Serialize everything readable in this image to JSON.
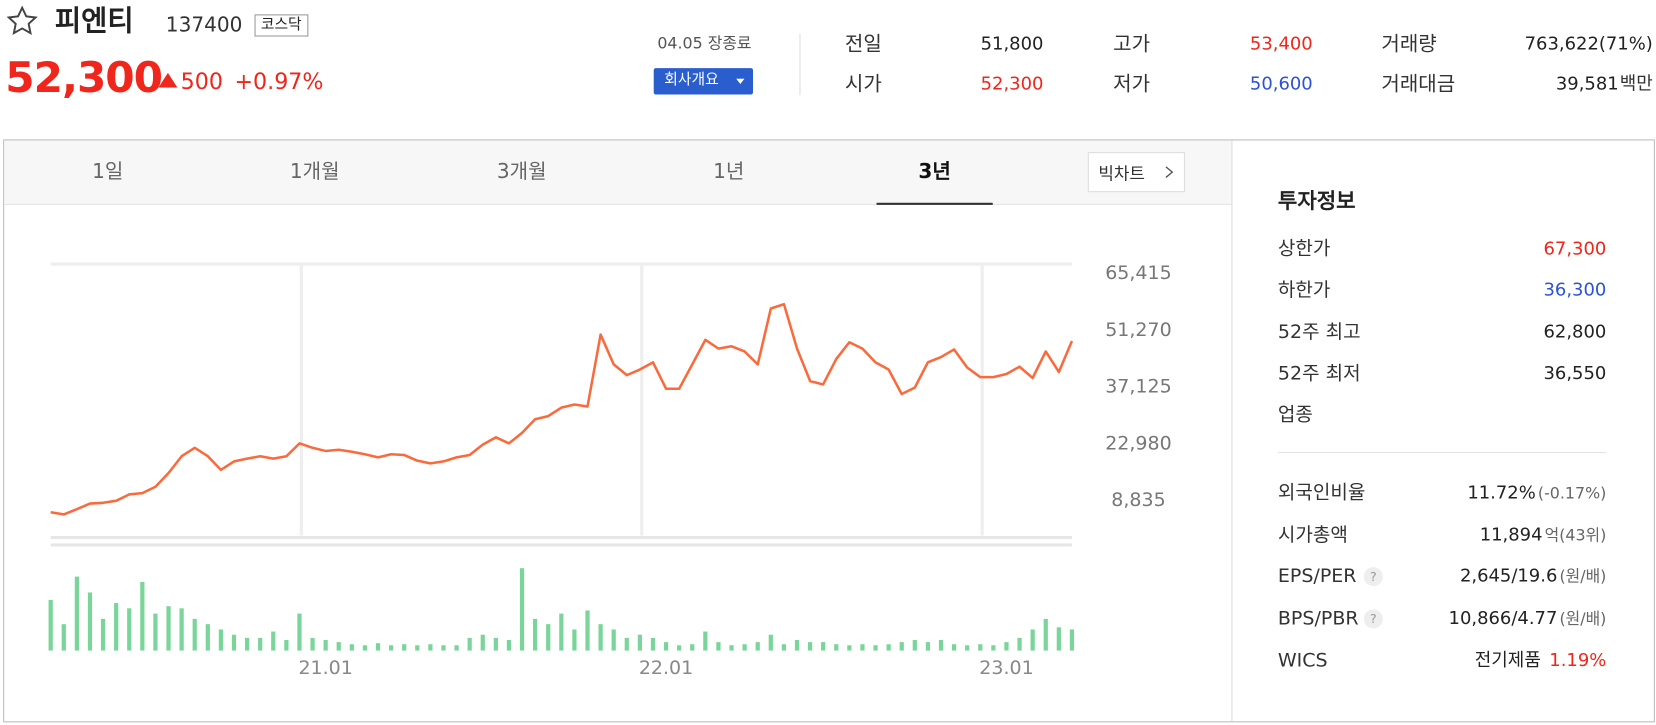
{
  "header": {
    "name": "피엔티",
    "code": "137400",
    "market": "코스닥",
    "price": "52,300",
    "change": "500",
    "change_rate": "+0.97%",
    "status": "04.05 장종료",
    "company_button": "회사개요",
    "price_color": "#f0251b"
  },
  "quote_table": [
    {
      "label": "전일",
      "value": "51,800",
      "color": "#222222"
    },
    {
      "label": "시가",
      "value": "52,300",
      "color": "#f0251b"
    },
    {
      "label": "고가",
      "value": "53,400",
      "color": "#f0251b"
    },
    {
      "label": "저가",
      "value": "50,600",
      "color": "#2b52d8"
    },
    {
      "label": "거래량",
      "value": "763,622(71%)",
      "color": "#222222"
    },
    {
      "label": "거래대금",
      "value": "39,581",
      "unit": "백만",
      "color": "#222222"
    }
  ],
  "tabs": [
    {
      "label": "1일"
    },
    {
      "label": "1개월"
    },
    {
      "label": "3개월"
    },
    {
      "label": "1년"
    },
    {
      "label": "3년",
      "active": true
    }
  ],
  "big_chart_button": "빅차트",
  "chart_data": [
    {
      "type": "line",
      "color": "#fa6a3d",
      "categories": [
        null,
        null,
        null,
        null,
        null,
        null,
        null,
        null,
        null,
        null,
        null,
        null,
        null,
        null,
        null,
        null,
        null,
        null,
        null,
        null,
        null,
        "21.01",
        null,
        null,
        null,
        null,
        null,
        null,
        null,
        null,
        null,
        null,
        null,
        null,
        null,
        null,
        null,
        null,
        null,
        null,
        null,
        null,
        null,
        null,
        null,
        null,
        null,
        "22.01",
        null,
        null,
        null,
        null,
        null,
        null,
        null,
        null,
        null,
        null,
        null,
        null,
        null,
        null,
        null,
        null,
        null,
        null,
        null,
        null,
        null,
        null,
        null,
        null,
        null,
        "23.01",
        null,
        null,
        null,
        null,
        null
      ],
      "values": [
        5950,
        5400,
        6700,
        8100,
        8300,
        8800,
        10400,
        10700,
        12300,
        15700,
        19900,
        22000,
        19900,
        16500,
        18600,
        19300,
        19900,
        19300,
        19900,
        23100,
        22000,
        21200,
        21500,
        21000,
        20400,
        19600,
        20400,
        20200,
        18800,
        18100,
        18600,
        19600,
        20200,
        22800,
        24600,
        23100,
        25700,
        29100,
        29900,
        32000,
        32800,
        32300,
        50200,
        42800,
        40100,
        41500,
        43300,
        36700,
        36700,
        42800,
        48900,
        46700,
        47300,
        46000,
        42800,
        56700,
        57800,
        46700,
        38600,
        37800,
        44100,
        48300,
        46700,
        43300,
        41500,
        35400,
        37000,
        43300,
        44600,
        46500,
        42000,
        39600,
        39600,
        40400,
        42200,
        39400,
        46000,
        40900,
        48600
      ],
      "ylim": [
        0,
        67790
      ],
      "yticks": [
        {
          "value": 8835,
          "label": "8,835"
        },
        {
          "value": 22980,
          "label": "22,980"
        },
        {
          "value": 37125,
          "label": "37,125"
        },
        {
          "value": 51270,
          "label": "51,270"
        },
        {
          "value": 65415,
          "label": "65,415"
        }
      ]
    },
    {
      "type": "bar",
      "color": "#7ad59a",
      "ylim": [
        0,
        100
      ],
      "values": [
        48,
        25,
        70,
        55,
        30,
        45,
        40,
        65,
        35,
        42,
        40,
        30,
        25,
        20,
        15,
        12,
        12,
        18,
        10,
        35,
        12,
        10,
        8,
        6,
        5,
        7,
        5,
        6,
        5,
        6,
        5,
        5,
        12,
        15,
        12,
        10,
        78,
        30,
        25,
        35,
        20,
        38,
        25,
        20,
        12,
        15,
        12,
        8,
        5,
        6,
        18,
        8,
        5,
        6,
        8,
        15,
        6,
        10,
        8,
        8,
        6,
        5,
        6,
        5,
        6,
        8,
        10,
        8,
        10,
        6,
        5,
        6,
        5,
        8,
        12,
        20,
        30,
        22,
        20
      ]
    }
  ],
  "invest_info": {
    "title": "투자정보",
    "rows": [
      {
        "label": "상한가",
        "value": "67,300",
        "color": "#f0251b"
      },
      {
        "label": "하한가",
        "value": "36,300",
        "color": "#2b52d8"
      },
      {
        "label": "52주 최고",
        "value": "62,800"
      },
      {
        "label": "52주 최저",
        "value": "36,550"
      },
      {
        "label": "업종"
      }
    ],
    "rows2": [
      {
        "label": "외국인비율",
        "value": "11.72%",
        "note": "(-0.17%)"
      },
      {
        "label": "시가총액",
        "value": "11,894",
        "note": "억(43위)"
      },
      {
        "label": "EPS/PER",
        "help": "?",
        "value": "2,645/19.6",
        "note": "(원/배)"
      },
      {
        "label": "BPS/PBR",
        "help": "?",
        "value": "10,866/4.77",
        "note": "(원/배)"
      },
      {
        "label": "WICS",
        "value": "전기제품",
        "extra": "1.19%",
        "extra_color": "#f0251b"
      }
    ]
  }
}
